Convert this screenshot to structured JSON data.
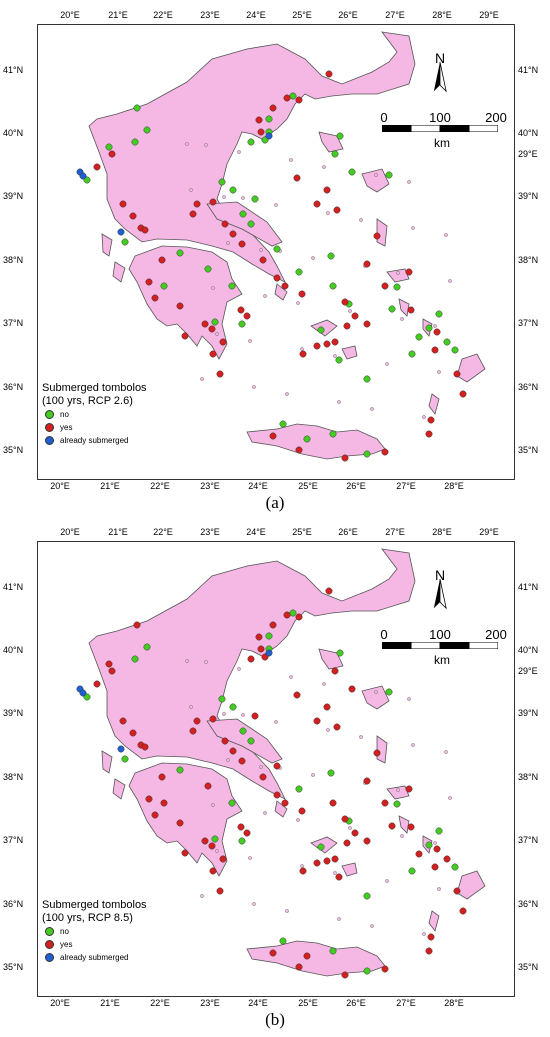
{
  "panels": [
    {
      "id": "a",
      "caption": "(a)",
      "legend": {
        "title_line1": "Submerged tombolos",
        "title_line2": "(100 yrs, RCP 2.6)",
        "items": [
          {
            "label": "no",
            "color": "#44cc22"
          },
          {
            "label": "yes",
            "color": "#d42020"
          },
          {
            "label": "already submerged",
            "color": "#1f5fd0"
          }
        ]
      }
    },
    {
      "id": "b",
      "caption": "(b)",
      "legend": {
        "title_line1": "Submerged tombolos",
        "title_line2": "(100 yrs, RCP 8.5)",
        "items": [
          {
            "label": "no",
            "color": "#44cc22"
          },
          {
            "label": "yes",
            "color": "#d42020"
          },
          {
            "label": "already submerged",
            "color": "#1f5fd0"
          }
        ]
      }
    }
  ],
  "axes": {
    "top_lon_labels": [
      "20°E",
      "21°E",
      "22°E",
      "23°E",
      "24°E",
      "25°E",
      "26°E",
      "27°E",
      "28°E",
      "29°E"
    ],
    "bottom_lon_labels": [
      "20°E",
      "21°E",
      "22°E",
      "23°E",
      "24°E",
      "25°E",
      "26°E",
      "27°E",
      "28°E"
    ],
    "lat_labels": [
      "41°N",
      "40°N",
      "39°N",
      "38°N",
      "37°N",
      "36°N",
      "35°N"
    ],
    "right_extra_label": "29°E"
  },
  "scale_bar": {
    "labels": [
      "0",
      "100",
      "200"
    ],
    "unit": "km"
  },
  "north_label": "N",
  "colors": {
    "land": "#f5b8e4",
    "coast": "#555555",
    "no": "#44cc22",
    "yes": "#d42020",
    "already": "#1f5fd0"
  }
}
